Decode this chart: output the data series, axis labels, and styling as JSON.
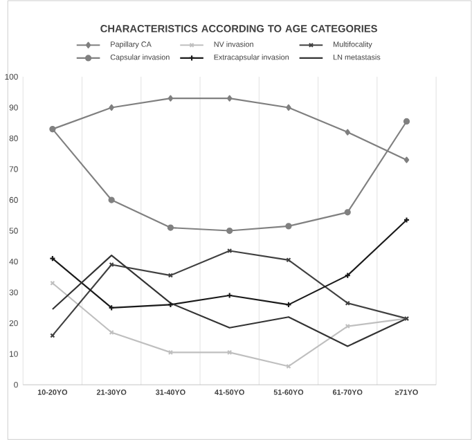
{
  "chart_data": {
    "type": "line",
    "title": "CHARACTERISTICS ACCORDING TO AGE CATEGORIES",
    "categories": [
      "10-20YO",
      "21-30YO",
      "31-40YO",
      "41-50YO",
      "51-60YO",
      "61-70YO",
      "≥71YO"
    ],
    "series": [
      {
        "name": "Papillary CA",
        "color": "#7f7f7f",
        "marker": "diamond",
        "values": [
          83,
          90,
          93,
          93,
          90,
          82,
          73
        ]
      },
      {
        "name": "NV invasion",
        "color": "#bfbfbf",
        "marker": "cross",
        "values": [
          33,
          17,
          10.5,
          10.5,
          6,
          19,
          21.5
        ]
      },
      {
        "name": "Multifocality",
        "color": "#404040",
        "marker": "cross",
        "values": [
          16,
          39,
          35.5,
          43.5,
          40.5,
          26.5,
          21.5
        ]
      },
      {
        "name": "Capsular invasion",
        "color": "#808080",
        "marker": "circle",
        "values": [
          83,
          60,
          51,
          50,
          51.5,
          56,
          85.5
        ]
      },
      {
        "name": "Extracapsular invasion",
        "color": "#1a1a1a",
        "marker": "plus",
        "values": [
          41,
          25,
          26,
          29,
          26,
          35.5,
          53.5
        ]
      },
      {
        "name": "LN metastasis",
        "color": "#333333",
        "marker": "none",
        "values": [
          24.5,
          42,
          26.5,
          18.5,
          22,
          12.5,
          21.5
        ]
      }
    ],
    "ylim": [
      0,
      100
    ],
    "yticks": [
      0,
      10,
      20,
      30,
      40,
      50,
      60,
      70,
      80,
      90,
      100
    ],
    "grid": "x",
    "legend": "top",
    "line_style": "solid"
  }
}
